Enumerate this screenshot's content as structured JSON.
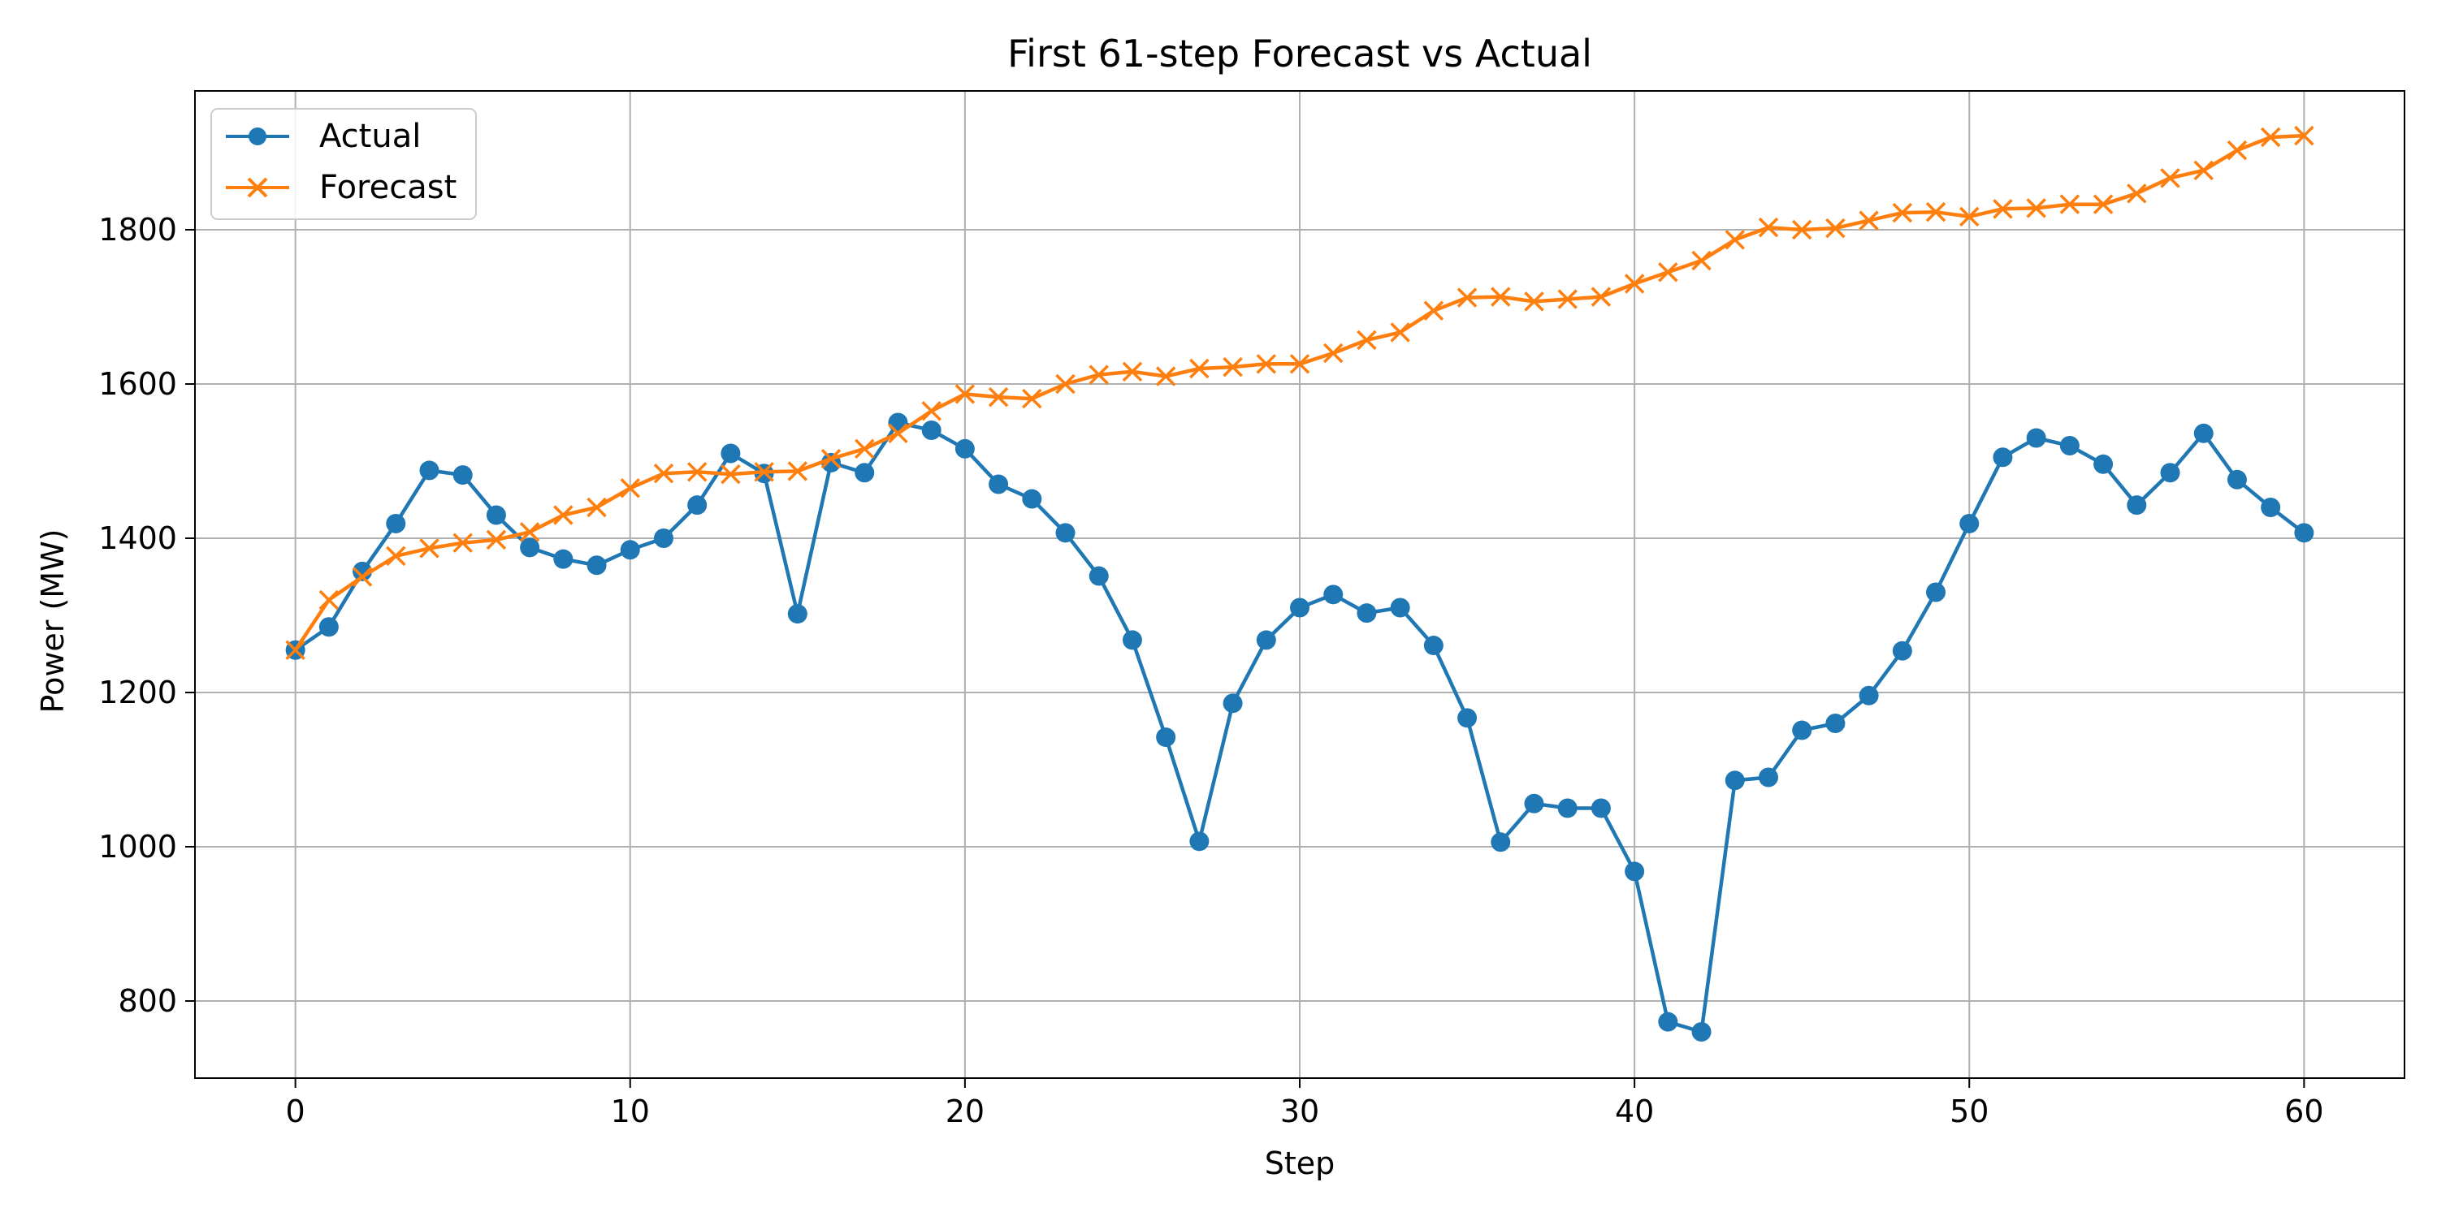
{
  "chart_data": {
    "type": "line",
    "title": "First 61-step Forecast vs Actual",
    "xlabel": "Step",
    "ylabel": "Power (MW)",
    "xlim": [
      -3,
      63
    ],
    "ylim": [
      700,
      1980
    ],
    "xticks": [
      0,
      10,
      20,
      30,
      40,
      50,
      60
    ],
    "yticks": [
      800,
      1000,
      1200,
      1400,
      1600,
      1800
    ],
    "grid": true,
    "legend_position": "upper-left",
    "x": [
      0,
      1,
      2,
      3,
      4,
      5,
      6,
      7,
      8,
      9,
      10,
      11,
      12,
      13,
      14,
      15,
      16,
      17,
      18,
      19,
      20,
      21,
      22,
      23,
      24,
      25,
      26,
      27,
      28,
      29,
      30,
      31,
      32,
      33,
      34,
      35,
      36,
      37,
      38,
      39,
      40,
      41,
      42,
      43,
      44,
      45,
      46,
      47,
      48,
      49,
      50,
      51,
      52,
      53,
      54,
      55,
      56,
      57,
      58,
      59,
      60
    ],
    "series": [
      {
        "name": "Actual",
        "color": "#1f77b4",
        "marker": "circle",
        "values": [
          1255,
          1285,
          1357,
          1419,
          1488,
          1482,
          1430,
          1388,
          1373,
          1365,
          1385,
          1400,
          1443,
          1510,
          1484,
          1302,
          1498,
          1485,
          1550,
          1540,
          1516,
          1470,
          1451,
          1407,
          1351,
          1268,
          1142,
          1007,
          1186,
          1268,
          1310,
          1327,
          1303,
          1310,
          1261,
          1167,
          1006,
          1056,
          1050,
          1050,
          968,
          773,
          760,
          1086,
          1090,
          1151,
          1160,
          1196,
          1254,
          1330,
          1419,
          1505,
          1530,
          1520,
          1496,
          1443,
          1485,
          1536,
          1476,
          1440,
          1407
        ]
      },
      {
        "name": "Forecast",
        "color": "#ff7f0e",
        "marker": "x",
        "values": [
          1255,
          1320,
          1350,
          1377,
          1387,
          1394,
          1398,
          1408,
          1430,
          1440,
          1465,
          1484,
          1486,
          1483,
          1486,
          1487,
          1503,
          1516,
          1536,
          1565,
          1587,
          1583,
          1581,
          1600,
          1612,
          1616,
          1610,
          1620,
          1622,
          1626,
          1626,
          1640,
          1657,
          1667,
          1695,
          1712,
          1713,
          1707,
          1710,
          1713,
          1730,
          1745,
          1760,
          1787,
          1803,
          1800,
          1802,
          1812,
          1822,
          1823,
          1817,
          1827,
          1828,
          1833,
          1833,
          1847,
          1867,
          1877,
          1903,
          1920,
          1922
        ]
      }
    ]
  }
}
